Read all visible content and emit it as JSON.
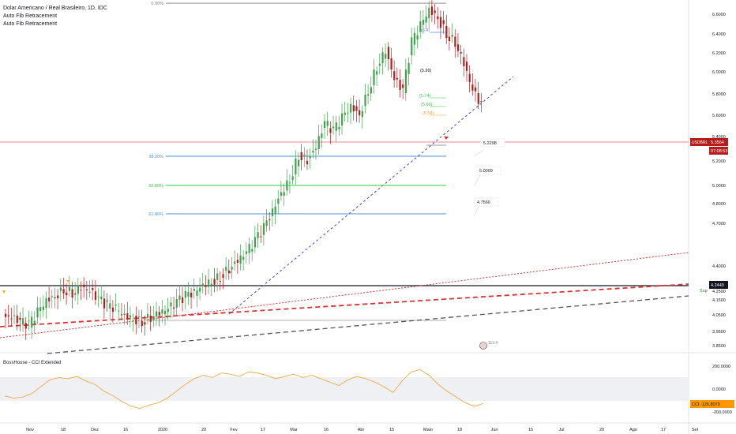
{
  "header": {
    "symbol_title": "Dolar Americano / Real Brasileiro, 1D, IDC",
    "indicators": [
      "Auto Fib Retracement",
      "Auto Fib Retracement"
    ]
  },
  "colors": {
    "bull": "#3fa34d",
    "bear": "#b71c1c",
    "fib_38": "#4a90e2",
    "fib_50": "#2ecc40",
    "fib_61": "#4a90e2",
    "fib_0": "#787b86",
    "trend_blue": "#3b4bd8",
    "red_trend": "#e03030",
    "black_trend": "#555555",
    "price_tag": "#b71c1c",
    "cci_up": "#e25c4a",
    "cci_down": "#f0a030",
    "cci_low": "#4caf50",
    "cci_tag": "#ff9800"
  },
  "price_axis": {
    "ticks": [
      "6.6000",
      "6.4000",
      "6.2000",
      "6.0000",
      "5.8000",
      "5.6000",
      "5.4000",
      "5.2000",
      "5.0000",
      "4.8000",
      "4.7000",
      "4.4000",
      "4.2500",
      "4.1500",
      "4.0500",
      "3.9500",
      "3.8500"
    ],
    "current_symbol": "USDBRL",
    "current_price": "5.3564",
    "countdown": "07:08:53",
    "support_price": "4.2440",
    "support_label": "Sup"
  },
  "cci_axis": {
    "ticks": [
      "200.0000",
      "0.0000",
      "-200.0000"
    ],
    "cci_label": "CCI",
    "cci_value": "-126.8079"
  },
  "time_axis": {
    "labels": [
      "Nov",
      "18",
      "Dez",
      "16",
      "2020",
      "20",
      "Fev",
      "17",
      "Mar",
      "16",
      "Abr",
      "15",
      "Maio",
      "18",
      "Jun",
      "15",
      "Jul",
      "20",
      "Ago",
      "17",
      "Set"
    ]
  },
  "fib": {
    "level_0_label": "0.00%",
    "level_38_label": "38.20%",
    "level_50_label": "50.00%",
    "level_61_label": "61.80%"
  },
  "annotations": {
    "peak_target": "(6.4)",
    "high": "(5.99)",
    "r1": "(5.74)",
    "r2": "(5.66)",
    "r3": "(5.58)",
    "proj1": "5.2298",
    "proj2": "5.0009",
    "proj3": "4.7560",
    "flag_value": "113.4"
  },
  "indicator_panel": {
    "title": "BossHouse - CCI Extended"
  },
  "chart_data": {
    "type": "candlestick",
    "title": "Dolar Americano / Real Brasileiro, 1D, IDC",
    "x_labels": [
      "Nov",
      "18",
      "Dez",
      "16",
      "2020",
      "20",
      "Fev",
      "17",
      "Mar",
      "16",
      "Abr",
      "15",
      "Maio",
      "18",
      "Jun",
      "15",
      "Jul",
      "20",
      "Ago",
      "17",
      "Set"
    ],
    "approx_close": [
      4.05,
      4.02,
      4.0,
      4.08,
      4.15,
      4.18,
      4.22,
      4.2,
      4.24,
      4.21,
      4.16,
      4.12,
      4.1,
      4.06,
      4.04,
      4.02,
      4.05,
      4.08,
      4.1,
      4.14,
      4.18,
      4.2,
      4.25,
      4.27,
      4.3,
      4.35,
      4.4,
      4.45,
      4.52,
      4.6,
      4.7,
      4.82,
      4.9,
      5.05,
      5.02,
      5.1,
      5.25,
      5.2,
      5.28,
      5.35,
      5.3,
      5.45,
      5.6,
      5.7,
      5.52,
      5.45,
      5.75,
      5.85,
      5.95,
      5.9,
      5.8,
      5.75,
      5.62,
      5.45,
      5.36
    ],
    "fib_levels": [
      {
        "label": "0.00%",
        "price": 5.99
      },
      {
        "label": "38.20%",
        "price": 5.23
      },
      {
        "label": "50.00%",
        "price": 5.0
      },
      {
        "label": "61.80%",
        "price": 4.756
      }
    ],
    "support": 4.244,
    "cci": {
      "panel_range": [
        -200,
        200
      ],
      "last": -126.8079
    }
  }
}
